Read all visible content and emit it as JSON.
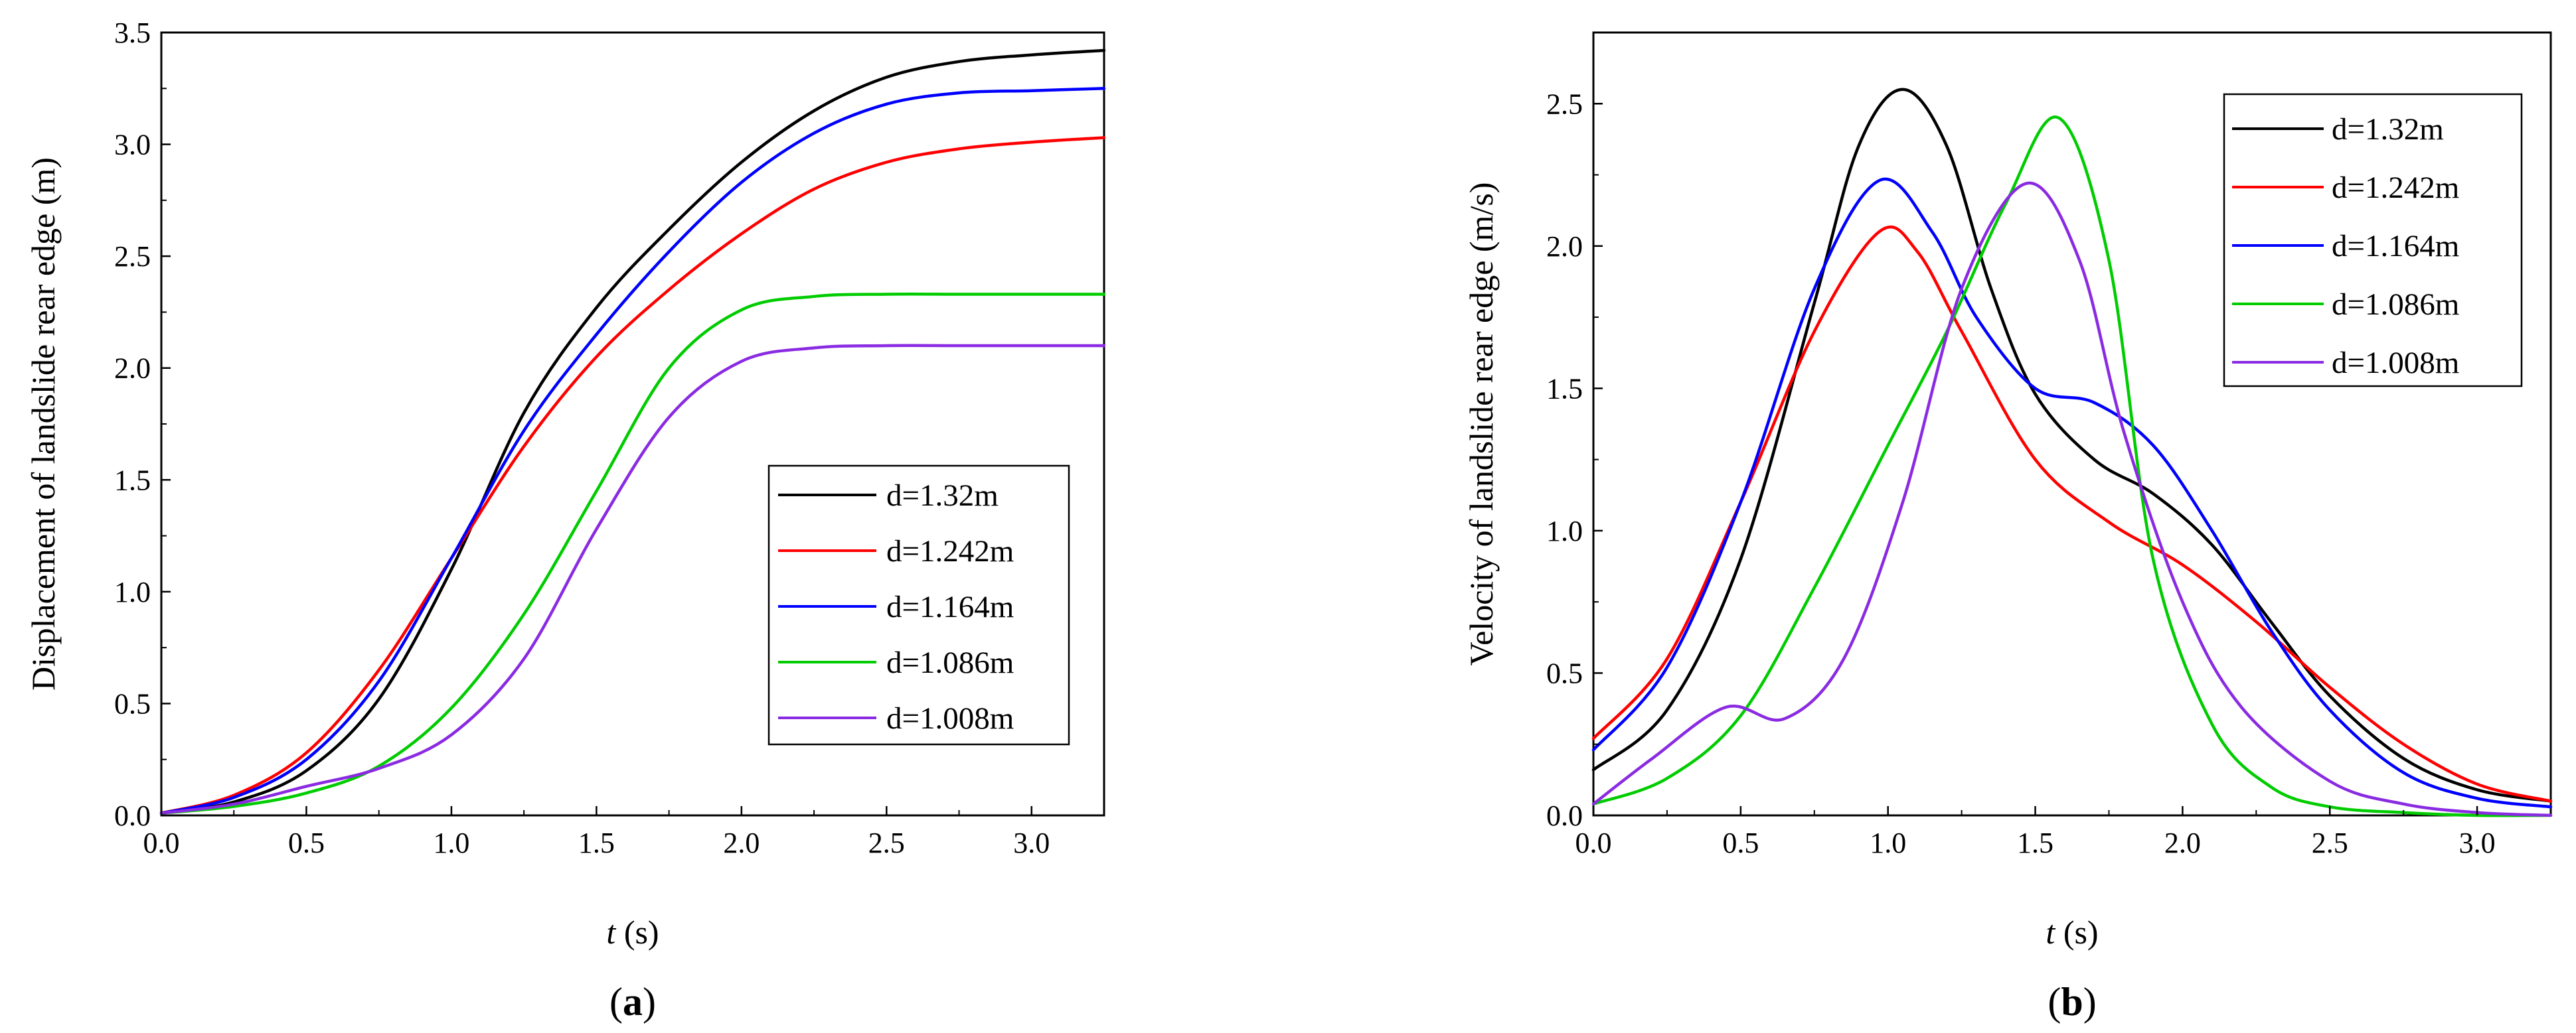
{
  "chart_data": [
    {
      "type": "line",
      "panel_label_open": "(",
      "panel_label_letter": "a",
      "panel_label_close": ")",
      "xlabel_italic": "t",
      "xlabel_unit": " (s)",
      "ylabel": "Displacement of landslide rear edge (m)",
      "xlim": [
        0,
        3.25
      ],
      "ylim": [
        0,
        3.5
      ],
      "xticks": [
        0.0,
        0.5,
        1.0,
        1.5,
        2.0,
        2.5,
        3.0
      ],
      "xtick_labels": [
        "0.0",
        "0.5",
        "1.0",
        "1.5",
        "2.0",
        "2.5",
        "3.0"
      ],
      "yticks": [
        0.0,
        0.5,
        1.0,
        1.5,
        2.0,
        2.5,
        3.0,
        3.5
      ],
      "ytick_labels": [
        "0.0",
        "0.5",
        "1.0",
        "1.5",
        "2.0",
        "2.5",
        "3.0",
        "3.5"
      ],
      "legend_position": "lower-right",
      "series": [
        {
          "name": "d=1.32m",
          "color": "#000000",
          "x": [
            0,
            0.25,
            0.5,
            0.75,
            1.0,
            1.25,
            1.5,
            1.75,
            2.0,
            2.25,
            2.5,
            2.75,
            3.0,
            3.25
          ],
          "y": [
            0.01,
            0.06,
            0.2,
            0.52,
            1.1,
            1.8,
            2.27,
            2.62,
            2.92,
            3.15,
            3.3,
            3.37,
            3.4,
            3.42
          ]
        },
        {
          "name": "d=1.242m",
          "color": "#ff0000",
          "x": [
            0,
            0.25,
            0.5,
            0.75,
            1.0,
            1.25,
            1.5,
            1.75,
            2.0,
            2.25,
            2.5,
            2.75,
            3.0,
            3.25
          ],
          "y": [
            0.01,
            0.09,
            0.28,
            0.65,
            1.15,
            1.65,
            2.05,
            2.35,
            2.6,
            2.8,
            2.92,
            2.98,
            3.01,
            3.03
          ]
        },
        {
          "name": "d=1.164m",
          "color": "#0000ff",
          "x": [
            0,
            0.25,
            0.5,
            0.75,
            1.0,
            1.25,
            1.5,
            1.75,
            2.0,
            2.25,
            2.5,
            2.75,
            3.0,
            3.25
          ],
          "y": [
            0.01,
            0.08,
            0.25,
            0.6,
            1.15,
            1.72,
            2.15,
            2.52,
            2.83,
            3.05,
            3.18,
            3.23,
            3.24,
            3.25
          ]
        },
        {
          "name": "d=1.086m",
          "color": "#00cc00",
          "x": [
            0,
            0.25,
            0.5,
            0.75,
            1.0,
            1.25,
            1.5,
            1.75,
            2.0,
            2.25,
            2.5,
            2.75,
            3.0,
            3.25
          ],
          "y": [
            0.01,
            0.04,
            0.1,
            0.22,
            0.48,
            0.9,
            1.45,
            2.0,
            2.26,
            2.32,
            2.33,
            2.33,
            2.33,
            2.33
          ]
        },
        {
          "name": "d=1.008m",
          "color": "#8a2be2",
          "x": [
            0,
            0.25,
            0.5,
            0.75,
            1.0,
            1.25,
            1.5,
            1.75,
            2.0,
            2.25,
            2.5,
            2.75,
            3.0,
            3.25
          ],
          "y": [
            0.01,
            0.05,
            0.13,
            0.21,
            0.36,
            0.7,
            1.28,
            1.78,
            2.03,
            2.09,
            2.1,
            2.1,
            2.1,
            2.1
          ]
        }
      ]
    },
    {
      "type": "line",
      "panel_label_open": "(",
      "panel_label_letter": "b",
      "panel_label_close": ")",
      "xlabel_italic": "t",
      "xlabel_unit": " (s)",
      "ylabel": "Velocity of landslide rear edge (m/s)",
      "xlim": [
        0,
        3.25
      ],
      "ylim": [
        0,
        2.75
      ],
      "xticks": [
        0.0,
        0.5,
        1.0,
        1.5,
        2.0,
        2.5,
        3.0
      ],
      "xtick_labels": [
        "0.0",
        "0.5",
        "1.0",
        "1.5",
        "2.0",
        "2.5",
        "3.0"
      ],
      "yticks": [
        0.0,
        0.5,
        1.0,
        1.5,
        2.0,
        2.5
      ],
      "ytick_labels": [
        "0.0",
        "0.5",
        "1.0",
        "1.5",
        "2.0",
        "2.5"
      ],
      "legend_position": "top-right",
      "series": [
        {
          "name": "d=1.32m",
          "color": "#000000",
          "x": [
            0,
            0.25,
            0.5,
            0.75,
            0.9,
            1.05,
            1.2,
            1.35,
            1.5,
            1.7,
            1.9,
            2.1,
            2.3,
            2.5,
            2.75,
            3.0,
            3.25
          ],
          "y": [
            0.16,
            0.37,
            0.9,
            1.8,
            2.35,
            2.55,
            2.35,
            1.85,
            1.48,
            1.25,
            1.13,
            0.95,
            0.68,
            0.42,
            0.2,
            0.09,
            0.05
          ]
        },
        {
          "name": "d=1.242m",
          "color": "#ff0000",
          "x": [
            0,
            0.25,
            0.5,
            0.75,
            0.97,
            1.1,
            1.25,
            1.5,
            1.75,
            2.0,
            2.25,
            2.5,
            2.75,
            3.0,
            3.25
          ],
          "y": [
            0.27,
            0.55,
            1.1,
            1.7,
            2.05,
            1.98,
            1.7,
            1.25,
            1.03,
            0.88,
            0.68,
            0.45,
            0.25,
            0.11,
            0.05
          ]
        },
        {
          "name": "d=1.164m",
          "color": "#0000ff",
          "x": [
            0,
            0.25,
            0.5,
            0.75,
            0.97,
            1.15,
            1.3,
            1.5,
            1.7,
            1.9,
            2.1,
            2.3,
            2.5,
            2.75,
            3.0,
            3.25
          ],
          "y": [
            0.23,
            0.52,
            1.1,
            1.85,
            2.23,
            2.05,
            1.75,
            1.5,
            1.45,
            1.3,
            1.0,
            0.65,
            0.37,
            0.15,
            0.06,
            0.03
          ]
        },
        {
          "name": "d=1.086m",
          "color": "#00cc00",
          "x": [
            0,
            0.25,
            0.5,
            0.75,
            1.0,
            1.2,
            1.4,
            1.58,
            1.75,
            1.9,
            2.1,
            2.3,
            2.5,
            2.75,
            3.0,
            3.25
          ],
          "y": [
            0.04,
            0.13,
            0.35,
            0.8,
            1.3,
            1.7,
            2.15,
            2.45,
            1.95,
            0.9,
            0.32,
            0.1,
            0.03,
            0.01,
            0.0,
            0.0
          ]
        },
        {
          "name": "d=1.008m",
          "color": "#8a2be2",
          "x": [
            0,
            0.2,
            0.45,
            0.65,
            0.85,
            1.05,
            1.25,
            1.47,
            1.65,
            1.8,
            2.0,
            2.2,
            2.5,
            2.75,
            3.0,
            3.25
          ],
          "y": [
            0.04,
            0.2,
            0.38,
            0.34,
            0.55,
            1.1,
            1.85,
            2.22,
            1.95,
            1.35,
            0.75,
            0.38,
            0.12,
            0.04,
            0.01,
            0.0
          ]
        }
      ]
    }
  ]
}
